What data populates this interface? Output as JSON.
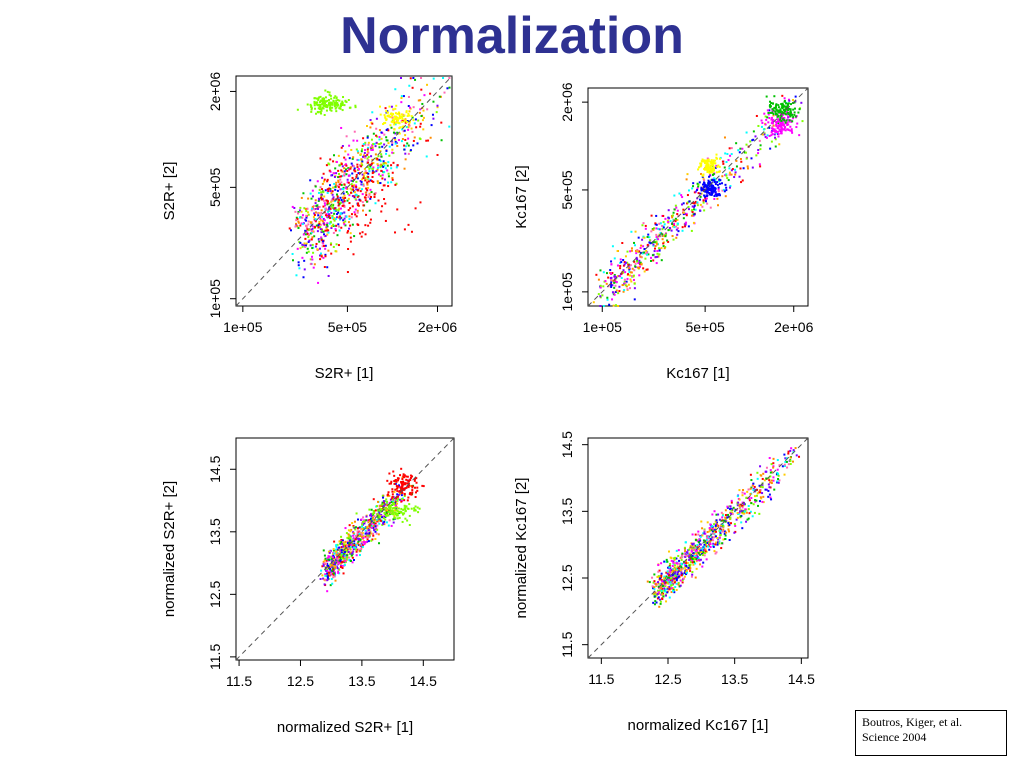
{
  "page": {
    "title": "Normalization"
  },
  "citation": {
    "line1": "Boutros, Kiger, et al.",
    "line2": "Science 2004"
  },
  "palette": [
    "#ff0000",
    "#00c000",
    "#0000ff",
    "#ff00ff",
    "#00ffff",
    "#ffff00",
    "#ff8c00",
    "#80ff00",
    "#8000ff",
    "#808080"
  ],
  "chart_data": [
    {
      "type": "scatter",
      "xlabel": "S2R+ [1]",
      "ylabel": "S2R+ [2]",
      "scale": "log",
      "xticks": [
        {
          "v": 100000,
          "label": "1e+05"
        },
        {
          "v": 500000,
          "label": "5e+05"
        },
        {
          "v": 2000000,
          "label": "2e+06"
        }
      ],
      "yticks": [
        {
          "v": 100000,
          "label": "1e+05"
        },
        {
          "v": 500000,
          "label": "5e+05"
        },
        {
          "v": 2000000,
          "label": "2e+06"
        }
      ],
      "xlim": [
        90000,
        2500000
      ],
      "ylim": [
        90000,
        2500000
      ],
      "reference_line": "y = x (dashed)",
      "clusters": [
        {
          "name": "main",
          "color": "#808080",
          "x_range": [
            250000,
            2200000
          ],
          "spread": 0.12,
          "n": 900,
          "note": "points along diagonal"
        },
        {
          "name": "green-outlier-band",
          "color": "#80ff00",
          "x": [
            260000,
            500000
          ],
          "y": [
            1500000,
            1900000
          ],
          "n": 150
        },
        {
          "name": "yellow",
          "color": "#ffff00",
          "x": [
            800000,
            1300000
          ],
          "y": [
            1200000,
            1600000
          ],
          "n": 80
        },
        {
          "name": "red-tail",
          "color": "#ff0000",
          "x": [
            300000,
            1200000
          ],
          "y": [
            200000,
            900000
          ],
          "n": 120
        }
      ]
    },
    {
      "type": "scatter",
      "xlabel": "Kc167 [1]",
      "ylabel": "Kc167 [2]",
      "scale": "log",
      "xticks": [
        {
          "v": 100000,
          "label": "1e+05"
        },
        {
          "v": 500000,
          "label": "5e+05"
        },
        {
          "v": 2000000,
          "label": "2e+06"
        }
      ],
      "yticks": [
        {
          "v": 100000,
          "label": "1e+05"
        },
        {
          "v": 500000,
          "label": "5e+05"
        },
        {
          "v": 2000000,
          "label": "2e+06"
        }
      ],
      "xlim": [
        80000,
        2500000
      ],
      "ylim": [
        80000,
        2500000
      ],
      "reference_line": "y = x (dashed)",
      "clusters": [
        {
          "name": "main",
          "color": "#808080",
          "x_range": [
            100000,
            2200000
          ],
          "spread": 0.08,
          "n": 600
        },
        {
          "name": "yellow",
          "color": "#ffff00",
          "x": [
            450000,
            620000
          ],
          "y": [
            650000,
            850000
          ],
          "n": 90
        },
        {
          "name": "blue",
          "color": "#0000ff",
          "x": [
            450000,
            650000
          ],
          "y": [
            450000,
            600000
          ],
          "n": 110
        },
        {
          "name": "magenta",
          "color": "#ff00ff",
          "x": [
            1300000,
            2000000
          ],
          "y": [
            1200000,
            1800000
          ],
          "n": 140
        },
        {
          "name": "green",
          "color": "#00c000",
          "x": [
            1300000,
            2000000
          ],
          "y": [
            1500000,
            2100000
          ],
          "n": 110
        }
      ]
    },
    {
      "type": "scatter",
      "xlabel": "normalized S2R+ [1]",
      "ylabel": "normalized S2R+ [2]",
      "scale": "linear",
      "xticks": [
        {
          "v": 11.5,
          "label": "11.5"
        },
        {
          "v": 12.5,
          "label": "12.5"
        },
        {
          "v": 13.5,
          "label": "13.5"
        },
        {
          "v": 14.5,
          "label": "14.5"
        }
      ],
      "yticks": [
        {
          "v": 11.5,
          "label": "11.5"
        },
        {
          "v": 12.5,
          "label": "12.5"
        },
        {
          "v": 13.5,
          "label": "13.5"
        },
        {
          "v": 14.5,
          "label": "14.5"
        }
      ],
      "xlim": [
        11.45,
        15.0
      ],
      "ylim": [
        11.45,
        15.0
      ],
      "reference_line": "y = x (dashed)",
      "clusters": [
        {
          "name": "main",
          "color": "#808080",
          "x_range": [
            12.9,
            14.3
          ],
          "spread": 0.12,
          "n": 800
        },
        {
          "name": "red",
          "color": "#ff0000",
          "x": [
            13.9,
            14.4
          ],
          "y": [
            14.0,
            14.5
          ],
          "n": 110
        },
        {
          "name": "green",
          "color": "#80ff00",
          "x": [
            13.6,
            14.4
          ],
          "y": [
            13.7,
            14.0
          ],
          "n": 90
        }
      ]
    },
    {
      "type": "scatter",
      "xlabel": "normalized Kc167 [1]",
      "ylabel": "normalized Kc167 [2]",
      "scale": "linear",
      "xticks": [
        {
          "v": 11.5,
          "label": "11.5"
        },
        {
          "v": 12.5,
          "label": "12.5"
        },
        {
          "v": 13.5,
          "label": "13.5"
        },
        {
          "v": 14.5,
          "label": "14.5"
        }
      ],
      "yticks": [
        {
          "v": 11.5,
          "label": "11.5"
        },
        {
          "v": 12.5,
          "label": "12.5"
        },
        {
          "v": 13.5,
          "label": "13.5"
        },
        {
          "v": 14.5,
          "label": "14.5"
        }
      ],
      "xlim": [
        11.3,
        14.6
      ],
      "ylim": [
        11.3,
        14.6
      ],
      "reference_line": "y = x (dashed)",
      "clusters": [
        {
          "name": "main",
          "color": "#808080",
          "x_range": [
            12.3,
            14.45
          ],
          "spread": 0.12,
          "n": 900
        }
      ]
    }
  ]
}
